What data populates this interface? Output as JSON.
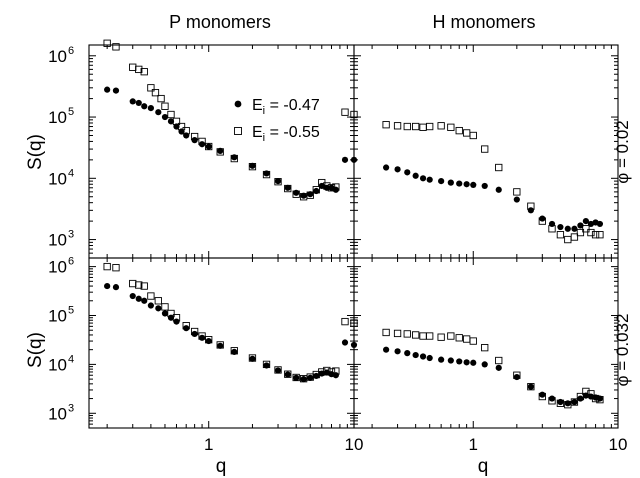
{
  "columns": [
    "P monomers",
    "H monomers"
  ],
  "rows": [
    "φ = 0.02",
    "φ = 0.032"
  ],
  "axis": {
    "xlabel": "q",
    "ylabel": "S(q)",
    "x_ticks": [
      {
        "value": 1,
        "label": "1"
      },
      {
        "value": 10,
        "label": "10"
      }
    ],
    "y_ticks": [
      {
        "value": 1000,
        "base": "10",
        "exp": "3"
      },
      {
        "value": 10000,
        "base": "10",
        "exp": "4"
      },
      {
        "value": 100000,
        "base": "10",
        "exp": "5"
      },
      {
        "value": 1000000,
        "base": "10",
        "exp": "6"
      }
    ]
  },
  "legend": [
    {
      "base": "E",
      "sub": "i",
      "rest": " = -0.47",
      "marker": "filled-circle"
    },
    {
      "base": "E",
      "sub": "i",
      "rest": " = -0.55",
      "marker": "open-square"
    }
  ],
  "chart_data": {
    "type": "scatter",
    "xscale": "log",
    "yscale": "log",
    "xlim": [
      0.15,
      10
    ],
    "ylim": [
      500,
      1500000
    ],
    "panels": [
      {
        "column": "P monomers",
        "row": "φ = 0.02",
        "series": [
          {
            "name": "E_i = -0.47",
            "marker": "filled-circle",
            "points": [
              [
                0.2,
                280000
              ],
              [
                0.23,
                270000
              ],
              [
                0.3,
                180000
              ],
              [
                0.33,
                170000
              ],
              [
                0.36,
                150000
              ],
              [
                0.4,
                140000
              ],
              [
                0.45,
                120000
              ],
              [
                0.5,
                100000
              ],
              [
                0.55,
                85000
              ],
              [
                0.6,
                70000
              ],
              [
                0.65,
                58000
              ],
              [
                0.7,
                50000
              ],
              [
                0.8,
                42000
              ],
              [
                0.9,
                36000
              ],
              [
                1.0,
                33000
              ],
              [
                1.2,
                28000
              ],
              [
                1.5,
                22000
              ],
              [
                2.0,
                16000
              ],
              [
                2.5,
                12000
              ],
              [
                3.0,
                9000
              ],
              [
                3.5,
                7000
              ],
              [
                4.0,
                5800
              ],
              [
                4.5,
                5200
              ],
              [
                5.0,
                5500
              ],
              [
                5.5,
                6200
              ],
              [
                6.0,
                7500
              ],
              [
                6.5,
                7000
              ],
              [
                7.0,
                7000
              ],
              [
                7.5,
                6500
              ]
            ]
          },
          {
            "name": "E_i = -0.55",
            "marker": "open-square",
            "points": [
              [
                0.2,
                1600000
              ],
              [
                0.23,
                1400000
              ],
              [
                0.3,
                650000
              ],
              [
                0.33,
                600000
              ],
              [
                0.36,
                550000
              ],
              [
                0.4,
                300000
              ],
              [
                0.43,
                250000
              ],
              [
                0.47,
                200000
              ],
              [
                0.5,
                150000
              ],
              [
                0.55,
                110000
              ],
              [
                0.6,
                85000
              ],
              [
                0.65,
                70000
              ],
              [
                0.7,
                60000
              ],
              [
                0.8,
                48000
              ],
              [
                0.9,
                40000
              ],
              [
                1.0,
                33000
              ],
              [
                1.2,
                27000
              ],
              [
                1.5,
                21000
              ],
              [
                2.0,
                15500
              ],
              [
                2.5,
                11500
              ],
              [
                3.0,
                8800
              ],
              [
                3.5,
                6800
              ],
              [
                4.0,
                5500
              ],
              [
                4.5,
                5000
              ],
              [
                5.0,
                5300
              ],
              [
                5.5,
                6500
              ],
              [
                6.0,
                8500
              ],
              [
                6.5,
                7500
              ],
              [
                7.0,
                7000
              ],
              [
                7.5,
                7200
              ]
            ]
          }
        ]
      },
      {
        "column": "H monomers",
        "row": "φ = 0.02",
        "series": [
          {
            "name": "E_i = -0.47",
            "marker": "filled-circle",
            "points": [
              [
                0.13,
                20000
              ],
              [
                0.15,
                20000
              ],
              [
                0.25,
                15000
              ],
              [
                0.3,
                14000
              ],
              [
                0.35,
                12500
              ],
              [
                0.4,
                11000
              ],
              [
                0.45,
                10000
              ],
              [
                0.5,
                9500
              ],
              [
                0.6,
                9000
              ],
              [
                0.7,
                8500
              ],
              [
                0.8,
                8200
              ],
              [
                0.9,
                8000
              ],
              [
                1.0,
                7800
              ],
              [
                1.2,
                7500
              ],
              [
                1.5,
                6500
              ],
              [
                2.0,
                4500
              ],
              [
                2.5,
                3000
              ],
              [
                3.0,
                2200
              ],
              [
                3.5,
                1800
              ],
              [
                4.0,
                1600
              ],
              [
                4.5,
                1500
              ],
              [
                5.0,
                1500
              ],
              [
                5.5,
                1700
              ],
              [
                6.0,
                2000
              ],
              [
                6.5,
                1800
              ],
              [
                7.0,
                1900
              ],
              [
                7.5,
                1800
              ]
            ]
          },
          {
            "name": "E_i = -0.55",
            "marker": "open-square",
            "points": [
              [
                0.13,
                120000
              ],
              [
                0.15,
                110000
              ],
              [
                0.25,
                75000
              ],
              [
                0.3,
                72000
              ],
              [
                0.35,
                70000
              ],
              [
                0.4,
                70000
              ],
              [
                0.45,
                68000
              ],
              [
                0.5,
                70000
              ],
              [
                0.6,
                72000
              ],
              [
                0.7,
                68000
              ],
              [
                0.8,
                60000
              ],
              [
                0.9,
                55000
              ],
              [
                1.0,
                50000
              ],
              [
                1.2,
                30000
              ],
              [
                1.5,
                15000
              ],
              [
                2.0,
                6000
              ],
              [
                2.5,
                3500
              ],
              [
                3.0,
                2000
              ],
              [
                3.5,
                1500
              ],
              [
                4.0,
                1200
              ],
              [
                4.5,
                1000
              ],
              [
                5.0,
                1100
              ],
              [
                5.5,
                1300
              ],
              [
                6.0,
                1500
              ],
              [
                6.5,
                1300
              ],
              [
                7.0,
                1200
              ],
              [
                7.5,
                1200
              ]
            ]
          }
        ]
      },
      {
        "column": "P monomers",
        "row": "φ = 0.032",
        "series": [
          {
            "name": "E_i = -0.47",
            "marker": "filled-circle",
            "points": [
              [
                0.2,
                400000
              ],
              [
                0.23,
                380000
              ],
              [
                0.3,
                250000
              ],
              [
                0.33,
                220000
              ],
              [
                0.36,
                200000
              ],
              [
                0.4,
                160000
              ],
              [
                0.45,
                140000
              ],
              [
                0.5,
                110000
              ],
              [
                0.55,
                90000
              ],
              [
                0.6,
                75000
              ],
              [
                0.7,
                55000
              ],
              [
                0.8,
                42000
              ],
              [
                0.9,
                35000
              ],
              [
                1.0,
                30000
              ],
              [
                1.2,
                24000
              ],
              [
                1.5,
                18000
              ],
              [
                2.0,
                13000
              ],
              [
                2.5,
                9500
              ],
              [
                3.0,
                7500
              ],
              [
                3.5,
                6200
              ],
              [
                4.0,
                5300
              ],
              [
                4.5,
                5000
              ],
              [
                5.0,
                5300
              ],
              [
                5.5,
                5800
              ],
              [
                6.0,
                6500
              ],
              [
                6.5,
                6800
              ],
              [
                7.0,
                6300
              ],
              [
                7.5,
                6000
              ]
            ]
          },
          {
            "name": "E_i = -0.55",
            "marker": "open-square",
            "points": [
              [
                0.2,
                1000000
              ],
              [
                0.23,
                950000
              ],
              [
                0.3,
                450000
              ],
              [
                0.33,
                420000
              ],
              [
                0.36,
                400000
              ],
              [
                0.4,
                250000
              ],
              [
                0.45,
                200000
              ],
              [
                0.5,
                150000
              ],
              [
                0.55,
                110000
              ],
              [
                0.6,
                90000
              ],
              [
                0.7,
                62000
              ],
              [
                0.8,
                47000
              ],
              [
                0.9,
                38000
              ],
              [
                1.0,
                32000
              ],
              [
                1.2,
                25000
              ],
              [
                1.5,
                19000
              ],
              [
                2.0,
                13500
              ],
              [
                2.5,
                10000
              ],
              [
                3.0,
                7700
              ],
              [
                3.5,
                6300
              ],
              [
                4.0,
                5400
              ],
              [
                4.5,
                5100
              ],
              [
                5.0,
                5500
              ],
              [
                5.5,
                6200
              ],
              [
                6.0,
                7000
              ],
              [
                6.5,
                7500
              ],
              [
                7.0,
                7000
              ],
              [
                7.5,
                7300
              ]
            ]
          }
        ]
      },
      {
        "column": "H monomers",
        "row": "φ = 0.032",
        "series": [
          {
            "name": "E_i = -0.47",
            "marker": "filled-circle",
            "points": [
              [
                0.13,
                28000
              ],
              [
                0.15,
                25000
              ],
              [
                0.25,
                20000
              ],
              [
                0.3,
                18500
              ],
              [
                0.35,
                17000
              ],
              [
                0.4,
                15500
              ],
              [
                0.45,
                14500
              ],
              [
                0.5,
                13500
              ],
              [
                0.6,
                12500
              ],
              [
                0.7,
                12000
              ],
              [
                0.8,
                11500
              ],
              [
                0.9,
                11000
              ],
              [
                1.0,
                10800
              ],
              [
                1.2,
                10000
              ],
              [
                1.5,
                8500
              ],
              [
                2.0,
                5500
              ],
              [
                2.5,
                3500
              ],
              [
                3.0,
                2400
              ],
              [
                3.5,
                2000
              ],
              [
                4.0,
                1700
              ],
              [
                4.5,
                1600
              ],
              [
                5.0,
                1700
              ],
              [
                5.5,
                2000
              ],
              [
                6.0,
                2300
              ],
              [
                6.5,
                2200
              ],
              [
                7.0,
                2100
              ],
              [
                7.5,
                2000
              ]
            ]
          },
          {
            "name": "E_i = -0.55",
            "marker": "open-square",
            "points": [
              [
                0.13,
                75000
              ],
              [
                0.15,
                70000
              ],
              [
                0.25,
                45000
              ],
              [
                0.3,
                43000
              ],
              [
                0.35,
                42000
              ],
              [
                0.4,
                40000
              ],
              [
                0.45,
                38000
              ],
              [
                0.5,
                38000
              ],
              [
                0.6,
                36000
              ],
              [
                0.7,
                38000
              ],
              [
                0.8,
                35000
              ],
              [
                0.9,
                33000
              ],
              [
                1.0,
                30000
              ],
              [
                1.2,
                22000
              ],
              [
                1.5,
                12000
              ],
              [
                2.0,
                6000
              ],
              [
                2.5,
                3500
              ],
              [
                3.0,
                2200
              ],
              [
                3.5,
                1800
              ],
              [
                4.0,
                1600
              ],
              [
                4.5,
                1500
              ],
              [
                5.0,
                1700
              ],
              [
                5.5,
                2200
              ],
              [
                6.0,
                2800
              ],
              [
                6.5,
                2500
              ],
              [
                7.0,
                2000
              ],
              [
                7.5,
                1900
              ]
            ]
          }
        ]
      }
    ]
  }
}
